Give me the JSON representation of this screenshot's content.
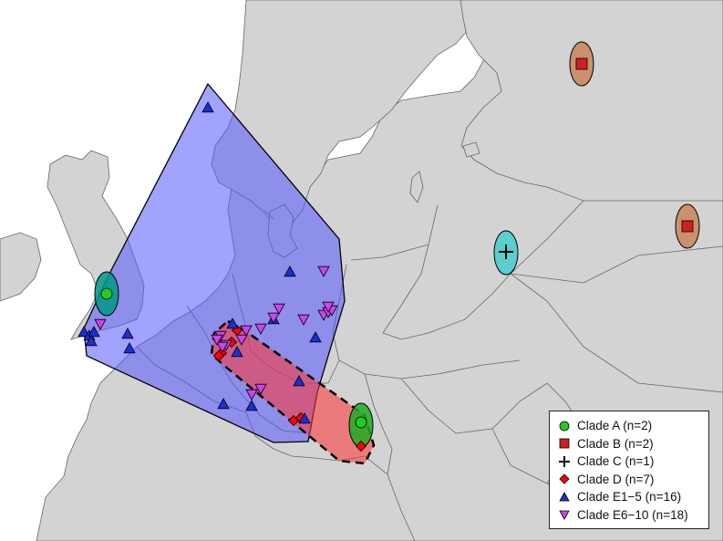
{
  "legend": {
    "items": [
      {
        "label": "Clade A (n=2)",
        "marker": "circle",
        "color": "#22cc22"
      },
      {
        "label": "Clade B (n=2)",
        "marker": "square",
        "color": "#cc2222"
      },
      {
        "label": "Clade C (n=1)",
        "marker": "plus",
        "color": "#000000"
      },
      {
        "label": "Clade D (n=7)",
        "marker": "diamond",
        "color": "#ff0000"
      },
      {
        "label": "Clade E1−5 (n=16)",
        "marker": "triangle-up",
        "color": "#1a2fd6"
      },
      {
        "label": "Clade E6−10 (n=18)",
        "marker": "triangle-down",
        "color": "#cc44ee"
      }
    ]
  },
  "colors": {
    "sea": "#ffffff",
    "land": "#d3d3d3",
    "border": "#666666",
    "hull_e": "#5555ff",
    "hull_d": "#ff4444",
    "ellipse_a": "#009988",
    "ellipse_b": "#c87a4a",
    "ellipse_c": "#33cccc"
  }
}
